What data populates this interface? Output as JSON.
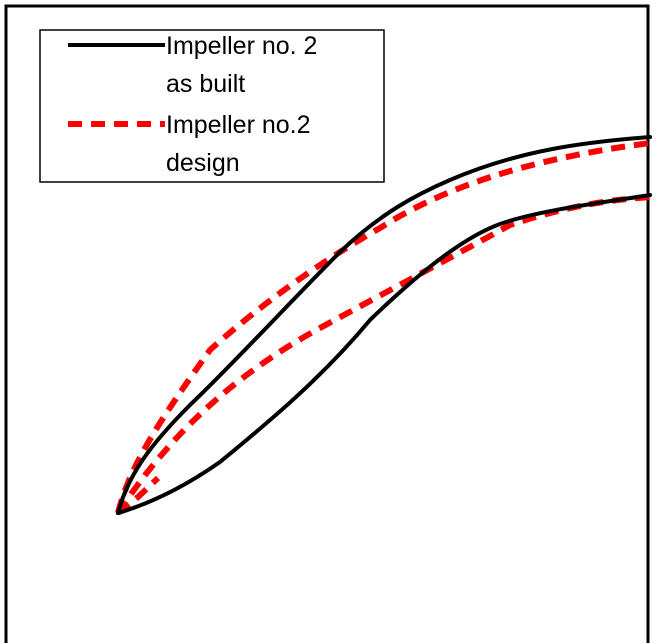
{
  "legend": {
    "items": [
      {
        "line_style": "solid",
        "color": "#000000",
        "label_line1": "Impeller no. 2",
        "label_line2": "as built"
      },
      {
        "line_style": "dashed",
        "color": "#ff0000",
        "label_line1": "Impeller no.2",
        "label_line2": "design"
      }
    ]
  }
}
